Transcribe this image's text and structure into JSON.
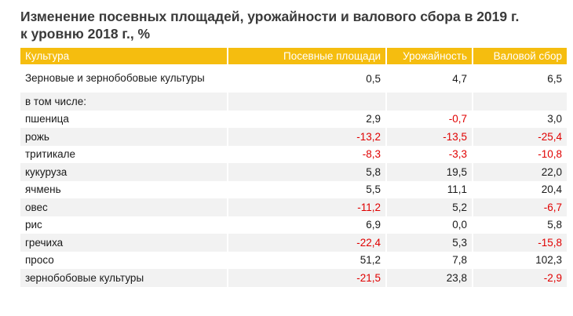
{
  "title": {
    "line1": "Изменение посевных площадей, урожайности и валового сбора в 2019 г.",
    "line2": "к уровню 2018 г., %"
  },
  "table": {
    "headers": [
      "Культура",
      "Посевные площади",
      "Урожайность",
      "Валовой сбор"
    ],
    "rows": [
      {
        "name": "Зерновые и зернобобовые культуры",
        "area": "0,5",
        "yield": "4,7",
        "harvest": "6,5"
      },
      {
        "name": "в том числе:",
        "area": "",
        "yield": "",
        "harvest": ""
      },
      {
        "name": "пшеница",
        "area": "2,9",
        "yield": "-0,7",
        "harvest": "3,0"
      },
      {
        "name": "рожь",
        "area": "-13,2",
        "yield": "-13,5",
        "harvest": "-25,4"
      },
      {
        "name": "тритикале",
        "area": "-8,3",
        "yield": "-3,3",
        "harvest": "-10,8"
      },
      {
        "name": "кукуруза",
        "area": "5,8",
        "yield": "19,5",
        "harvest": "22,0"
      },
      {
        "name": "ячмень",
        "area": "5,5",
        "yield": "11,1",
        "harvest": "20,4"
      },
      {
        "name": "овес",
        "area": "-11,2",
        "yield": "5,2",
        "harvest": "-6,7"
      },
      {
        "name": "рис",
        "area": "6,9",
        "yield": "0,0",
        "harvest": "5,8"
      },
      {
        "name": "гречиха",
        "area": "-22,4",
        "yield": "5,3",
        "harvest": "-15,8"
      },
      {
        "name": "просо",
        "area": "51,2",
        "yield": "7,8",
        "harvest": "102,3"
      },
      {
        "name": "зернобобовые культуры",
        "area": "-21,5",
        "yield": "23,8",
        "harvest": "-2,9"
      }
    ]
  },
  "colors": {
    "header_bg": "#f5bd0f",
    "header_text": "#ffffff",
    "negative": "#e00000",
    "stripe": "#f2f2f2"
  }
}
